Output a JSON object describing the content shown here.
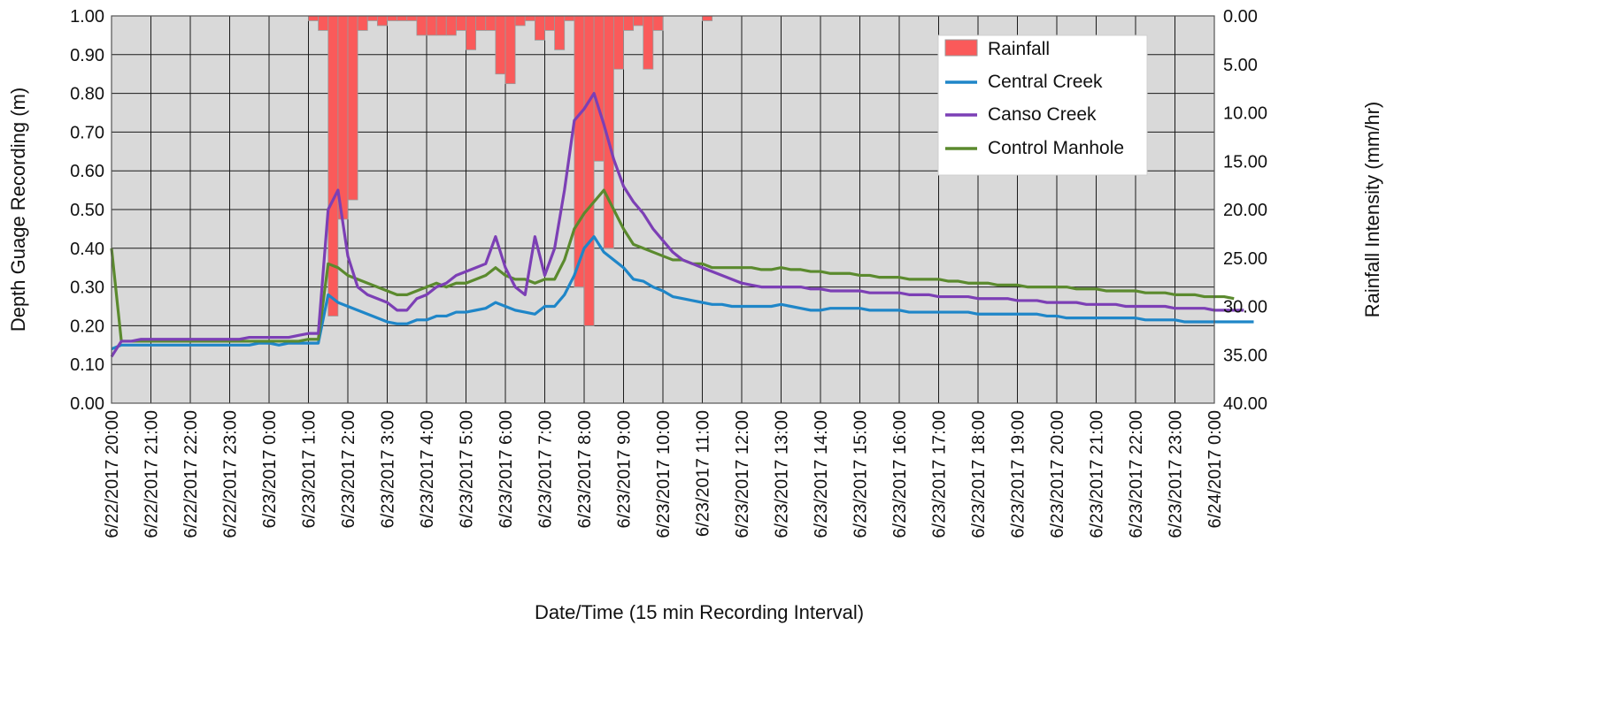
{
  "chart_data": {
    "type": "bar+line",
    "title": "",
    "xlabel": "Date/Time (15 min Recording Interval)",
    "ylabel_left": "Depth Guage Recording (m)",
    "ylabel_right": "Rainfall Intensity (mm/hr)",
    "ylim_left": [
      0,
      1.0
    ],
    "ylim_right": [
      0,
      40
    ],
    "right_axis_inverted": true,
    "grid": true,
    "legend_position": "top-right",
    "x_start": "6/22/2017 20:00",
    "x_end": "6/24/2017 0:00",
    "x_interval_minutes": 15,
    "x_ticks": [
      "6/22/2017 20:00",
      "6/22/2017 21:00",
      "6/22/2017 22:00",
      "6/22/2017 23:00",
      "6/23/2017 0:00",
      "6/23/2017 1:00",
      "6/23/2017 2:00",
      "6/23/2017 3:00",
      "6/23/2017 4:00",
      "6/23/2017 5:00",
      "6/23/2017 6:00",
      "6/23/2017 7:00",
      "6/23/2017 8:00",
      "6/23/2017 9:00",
      "6/23/2017 10:00",
      "6/23/2017 11:00",
      "6/23/2017 12:00",
      "6/23/2017 13:00",
      "6/23/2017 14:00",
      "6/23/2017 15:00",
      "6/23/2017 16:00",
      "6/23/2017 17:00",
      "6/23/2017 18:00",
      "6/23/2017 19:00",
      "6/23/2017 20:00",
      "6/23/2017 21:00",
      "6/23/2017 22:00",
      "6/23/2017 23:00",
      "6/24/2017 0:00"
    ],
    "y_ticks_left": [
      "0.00",
      "0.10",
      "0.20",
      "0.30",
      "0.40",
      "0.50",
      "0.60",
      "0.70",
      "0.80",
      "0.90",
      "1.00"
    ],
    "y_ticks_right": [
      "0.00",
      "5.00",
      "10.00",
      "15.00",
      "20.00",
      "25.00",
      "30.00",
      "35.00",
      "40.00"
    ],
    "rainfall": {
      "name": "Rainfall",
      "color": "#fa5a5a",
      "units": "mm/hr",
      "values": [
        0,
        0,
        0,
        0,
        0,
        0,
        0,
        0,
        0,
        0,
        0,
        0,
        0,
        0,
        0,
        0,
        0,
        0,
        0,
        0,
        0.5,
        1.5,
        31,
        21,
        19,
        1.5,
        0.5,
        1,
        0.5,
        0.5,
        0.5,
        2,
        2,
        2,
        2,
        1.5,
        3.5,
        1.5,
        1.5,
        6,
        7,
        1,
        0.5,
        2.5,
        1.5,
        3.5,
        0.5,
        28,
        32,
        15,
        24,
        5.5,
        1.5,
        1,
        5.5,
        1.5,
        0,
        0,
        0,
        0,
        0.5,
        0,
        0,
        0,
        0,
        0,
        0,
        0,
        0,
        0,
        0,
        0,
        0,
        0,
        0,
        0,
        0,
        0,
        0,
        0,
        0,
        0,
        0,
        0,
        0,
        0,
        0,
        0,
        0,
        0,
        0,
        0,
        0,
        0,
        0,
        0,
        0,
        0,
        0,
        0,
        0,
        0,
        0,
        0,
        0,
        0,
        0,
        0,
        0,
        0,
        0,
        0,
        0,
        0,
        0,
        0
      ]
    },
    "series": [
      {
        "name": "Central Creek",
        "color": "#1f86c8",
        "values": [
          0.14,
          0.15,
          0.15,
          0.15,
          0.15,
          0.15,
          0.15,
          0.15,
          0.15,
          0.15,
          0.15,
          0.15,
          0.15,
          0.15,
          0.15,
          0.155,
          0.155,
          0.15,
          0.155,
          0.155,
          0.155,
          0.155,
          0.28,
          0.26,
          0.25,
          0.24,
          0.23,
          0.22,
          0.21,
          0.205,
          0.205,
          0.215,
          0.215,
          0.225,
          0.225,
          0.235,
          0.235,
          0.24,
          0.245,
          0.26,
          0.25,
          0.24,
          0.235,
          0.23,
          0.25,
          0.25,
          0.28,
          0.33,
          0.4,
          0.43,
          0.39,
          0.37,
          0.35,
          0.32,
          0.315,
          0.3,
          0.29,
          0.275,
          0.27,
          0.265,
          0.26,
          0.255,
          0.255,
          0.25,
          0.25,
          0.25,
          0.25,
          0.25,
          0.255,
          0.25,
          0.245,
          0.24,
          0.24,
          0.245,
          0.245,
          0.245,
          0.245,
          0.24,
          0.24,
          0.24,
          0.24,
          0.235,
          0.235,
          0.235,
          0.235,
          0.235,
          0.235,
          0.235,
          0.23,
          0.23,
          0.23,
          0.23,
          0.23,
          0.23,
          0.23,
          0.225,
          0.225,
          0.22,
          0.22,
          0.22,
          0.22,
          0.22,
          0.22,
          0.22,
          0.22,
          0.215,
          0.215,
          0.215,
          0.215,
          0.21,
          0.21,
          0.21,
          0.21,
          0.21,
          0.21,
          0.21,
          0.21
        ]
      },
      {
        "name": "Canso Creek",
        "color": "#7c3fb5",
        "values": [
          0.12,
          0.16,
          0.16,
          0.165,
          0.165,
          0.165,
          0.165,
          0.165,
          0.165,
          0.165,
          0.165,
          0.165,
          0.165,
          0.165,
          0.17,
          0.17,
          0.17,
          0.17,
          0.17,
          0.175,
          0.18,
          0.18,
          0.5,
          0.55,
          0.38,
          0.3,
          0.28,
          0.27,
          0.26,
          0.24,
          0.24,
          0.27,
          0.28,
          0.3,
          0.31,
          0.33,
          0.34,
          0.35,
          0.36,
          0.43,
          0.35,
          0.3,
          0.28,
          0.43,
          0.33,
          0.4,
          0.55,
          0.73,
          0.76,
          0.8,
          0.72,
          0.63,
          0.56,
          0.52,
          0.49,
          0.45,
          0.42,
          0.39,
          0.37,
          0.36,
          0.35,
          0.34,
          0.33,
          0.32,
          0.31,
          0.305,
          0.3,
          0.3,
          0.3,
          0.3,
          0.3,
          0.295,
          0.295,
          0.29,
          0.29,
          0.29,
          0.29,
          0.285,
          0.285,
          0.285,
          0.285,
          0.28,
          0.28,
          0.28,
          0.275,
          0.275,
          0.275,
          0.275,
          0.27,
          0.27,
          0.27,
          0.27,
          0.265,
          0.265,
          0.265,
          0.26,
          0.26,
          0.26,
          0.26,
          0.255,
          0.255,
          0.255,
          0.255,
          0.25,
          0.25,
          0.25,
          0.25,
          0.25,
          0.245,
          0.245,
          0.245,
          0.245,
          0.24,
          0.24,
          0.24,
          0.24
        ]
      },
      {
        "name": "Control Manhole",
        "color": "#5b8a2e",
        "values": [
          0.4,
          0.16,
          0.16,
          0.16,
          0.16,
          0.16,
          0.16,
          0.16,
          0.16,
          0.16,
          0.16,
          0.16,
          0.16,
          0.16,
          0.16,
          0.16,
          0.16,
          0.16,
          0.16,
          0.16,
          0.165,
          0.165,
          0.36,
          0.35,
          0.33,
          0.32,
          0.31,
          0.3,
          0.29,
          0.28,
          0.28,
          0.29,
          0.3,
          0.31,
          0.3,
          0.31,
          0.31,
          0.32,
          0.33,
          0.35,
          0.33,
          0.32,
          0.32,
          0.31,
          0.32,
          0.32,
          0.37,
          0.45,
          0.49,
          0.52,
          0.55,
          0.5,
          0.45,
          0.41,
          0.4,
          0.39,
          0.38,
          0.37,
          0.37,
          0.36,
          0.36,
          0.35,
          0.35,
          0.35,
          0.35,
          0.35,
          0.345,
          0.345,
          0.35,
          0.345,
          0.345,
          0.34,
          0.34,
          0.335,
          0.335,
          0.335,
          0.33,
          0.33,
          0.325,
          0.325,
          0.325,
          0.32,
          0.32,
          0.32,
          0.32,
          0.315,
          0.315,
          0.31,
          0.31,
          0.31,
          0.305,
          0.305,
          0.305,
          0.3,
          0.3,
          0.3,
          0.3,
          0.3,
          0.295,
          0.295,
          0.295,
          0.29,
          0.29,
          0.29,
          0.29,
          0.285,
          0.285,
          0.285,
          0.28,
          0.28,
          0.28,
          0.275,
          0.275,
          0.275,
          0.27
        ]
      }
    ]
  }
}
